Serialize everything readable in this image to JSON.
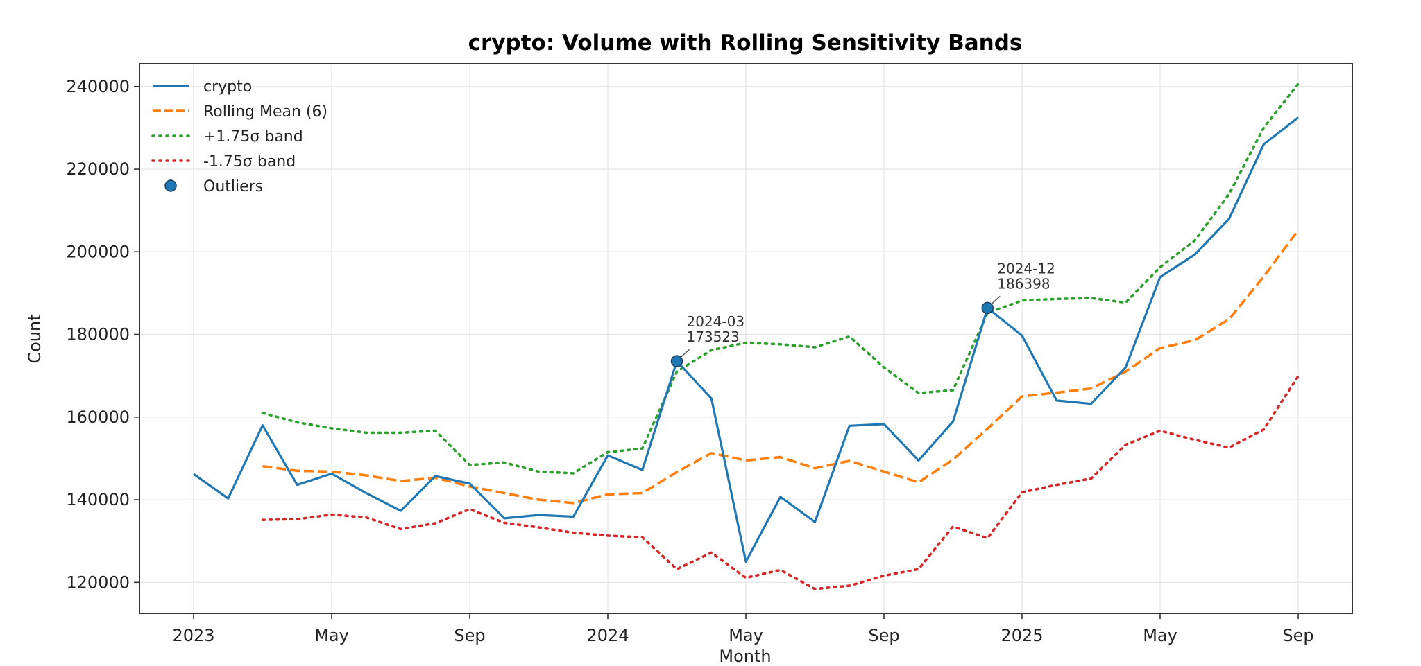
{
  "chart_data": {
    "type": "line",
    "title": "crypto: Volume with Rolling Sensitivity Bands",
    "xlabel": "Month",
    "ylabel": "Count",
    "ylim": [
      112500,
      245500
    ],
    "xlim": [
      "2022-11-12",
      "2025-10-20"
    ],
    "grid": true,
    "legend_position": "top-left",
    "y_ticks": [
      120000,
      140000,
      160000,
      180000,
      200000,
      220000,
      240000
    ],
    "x_ticks": [
      {
        "label": "2023",
        "month_index": 0
      },
      {
        "label": "May",
        "month_index": 4
      },
      {
        "label": "Sep",
        "month_index": 8
      },
      {
        "label": "2024",
        "month_index": 12
      },
      {
        "label": "May",
        "month_index": 16
      },
      {
        "label": "Sep",
        "month_index": 20
      },
      {
        "label": "2025",
        "month_index": 24
      },
      {
        "label": "May",
        "month_index": 28
      },
      {
        "label": "Sep",
        "month_index": 32
      }
    ],
    "x": [
      "2023-01",
      "2023-02",
      "2023-03",
      "2023-04",
      "2023-05",
      "2023-06",
      "2023-07",
      "2023-08",
      "2023-09",
      "2023-10",
      "2023-11",
      "2023-12",
      "2024-01",
      "2024-02",
      "2024-03",
      "2024-04",
      "2024-05",
      "2024-06",
      "2024-07",
      "2024-08",
      "2024-09",
      "2024-10",
      "2024-11",
      "2024-12",
      "2025-01",
      "2025-02",
      "2025-03",
      "2025-04",
      "2025-05",
      "2025-06",
      "2025-07",
      "2025-08",
      "2025-09"
    ],
    "series": [
      {
        "name": "crypto",
        "style": "solid",
        "color": "#1f77b4",
        "values": [
          146200,
          140300,
          158000,
          143600,
          146300,
          141600,
          137300,
          145700,
          143900,
          135500,
          136300,
          135900,
          150700,
          147200,
          173523,
          164500,
          125000,
          140700,
          134600,
          157900,
          158300,
          149500,
          158900,
          186398,
          179700,
          164000,
          163200,
          172000,
          193900,
          199300,
          208000,
          226000,
          232500
        ]
      },
      {
        "name": "Rolling Mean (6)",
        "style": "dashed",
        "color": "#ff7f0e",
        "values": [
          null,
          null,
          148100,
          147000,
          146800,
          145900,
          144500,
          145300,
          143200,
          141600,
          140000,
          139200,
          141300,
          141600,
          146700,
          151300,
          149500,
          150300,
          147600,
          149400,
          146800,
          144200,
          149700,
          157200,
          165000,
          165900,
          166900,
          171000,
          176700,
          178600,
          183700,
          194000,
          205200
        ]
      },
      {
        "name": "+1.75σ band",
        "style": "dotted",
        "color": "#2ca02c",
        "values": [
          null,
          null,
          161000,
          158700,
          157300,
          156200,
          156200,
          156700,
          148400,
          149000,
          146800,
          146400,
          151500,
          152400,
          171000,
          176200,
          178000,
          177600,
          176900,
          179500,
          172000,
          165800,
          166500,
          185200,
          188200,
          188600,
          188800,
          187700,
          196300,
          202700,
          214000,
          230000,
          240600
        ]
      },
      {
        "name": "-1.75σ band",
        "style": "dotted",
        "color": "#d62728",
        "values": [
          null,
          null,
          135100,
          135300,
          136400,
          135700,
          132900,
          134300,
          137700,
          134400,
          133300,
          132000,
          131300,
          130900,
          123200,
          127200,
          121100,
          123000,
          118400,
          119200,
          121600,
          123200,
          133500,
          130700,
          141800,
          143600,
          145100,
          153300,
          156700,
          154500,
          152600,
          157000,
          169900
        ]
      }
    ],
    "outliers": [
      {
        "x": "2024-03",
        "value": 173523,
        "label_line1": "2024-03",
        "label_line2": "173523"
      },
      {
        "x": "2024-12",
        "value": 186398,
        "label_line1": "2024-12",
        "label_line2": "186398"
      }
    ],
    "legend": [
      {
        "label": "crypto",
        "style": "solid",
        "color": "#1f77b4"
      },
      {
        "label": "Rolling Mean (6)",
        "style": "dashed",
        "color": "#ff7f0e"
      },
      {
        "label": "+1.75σ band",
        "style": "dotted",
        "color": "#2ca02c"
      },
      {
        "label": "-1.75σ band",
        "style": "dotted",
        "color": "#d62728"
      },
      {
        "label": "Outliers",
        "style": "marker",
        "color": "#1f77b4"
      }
    ]
  }
}
